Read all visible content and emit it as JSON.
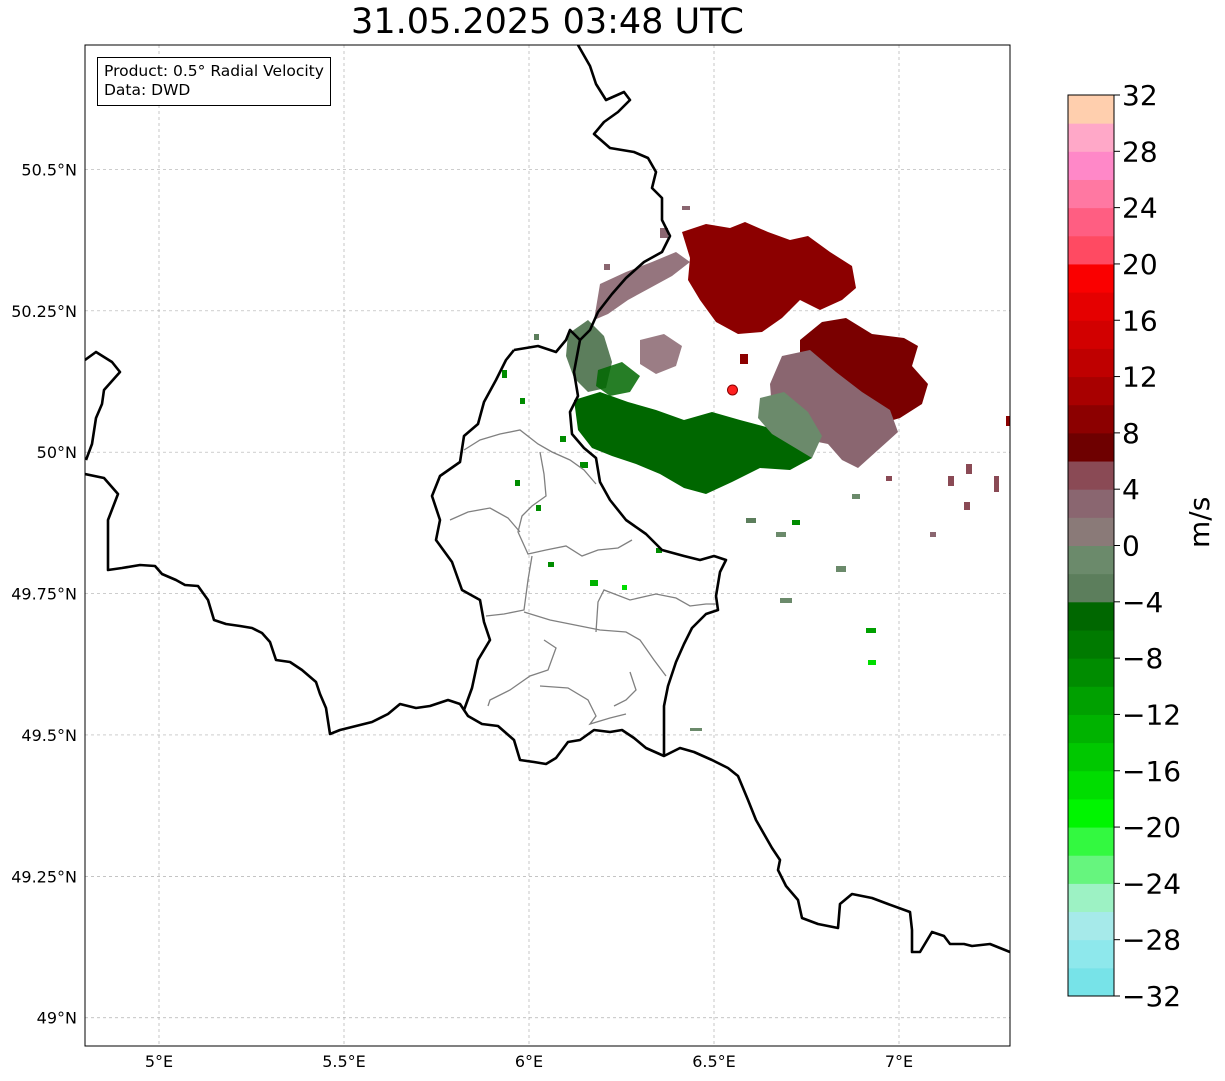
{
  "title": "31.05.2025 03:48 UTC",
  "info": {
    "product_line": "Product: 0.5° Radial Velocity",
    "data_line": "Data: DWD"
  },
  "map": {
    "lon_range": [
      4.8,
      7.3
    ],
    "lat_range": [
      48.95,
      50.72
    ],
    "lon_ticks": [
      {
        "value": 5.0,
        "label": "5°E"
      },
      {
        "value": 5.5,
        "label": "5.5°E"
      },
      {
        "value": 6.0,
        "label": "6°E"
      },
      {
        "value": 6.5,
        "label": "6.5°E"
      },
      {
        "value": 7.0,
        "label": "7°E"
      }
    ],
    "lat_ticks": [
      {
        "value": 50.5,
        "label": "50.5°N"
      },
      {
        "value": 50.25,
        "label": "50.25°N"
      },
      {
        "value": 50.0,
        "label": "50°N"
      },
      {
        "value": 49.75,
        "label": "49.75°N"
      },
      {
        "value": 49.5,
        "label": "49.5°N"
      },
      {
        "value": 49.25,
        "label": "49.25°N"
      },
      {
        "value": 49.0,
        "label": "49°N"
      }
    ],
    "gridlines": true,
    "radar_site": {
      "lon": 6.55,
      "lat": 50.11,
      "color": "#ff2020"
    }
  },
  "colorbar": {
    "unit": "m/s",
    "min": -32,
    "max": 32,
    "step": 2,
    "tick_labels": [
      "32",
      "28",
      "24",
      "20",
      "16",
      "12",
      "8",
      "4",
      "0",
      "−4",
      "−8",
      "−12",
      "−16",
      "−20",
      "−24",
      "−28",
      "−32"
    ],
    "colors_bottom_to_top": [
      "#77e3e8",
      "#8ee8ec",
      "#a6eaea",
      "#9df2c4",
      "#66f57e",
      "#33f940",
      "#00f500",
      "#00dd00",
      "#00c800",
      "#00b300",
      "#00a000",
      "#008c00",
      "#007a00",
      "#006700",
      "#5c7e5c",
      "#6b8a6b",
      "#8a7a78",
      "#8a6670",
      "#8a4a55",
      "#6e0000",
      "#8c0000",
      "#a80000",
      "#bf0000",
      "#d20000",
      "#e50000",
      "#fa0000",
      "#ff4a62",
      "#ff5e82",
      "#ff78a2",
      "#ff88c8",
      "#ffa8c8",
      "#ffcfae"
    ]
  }
}
